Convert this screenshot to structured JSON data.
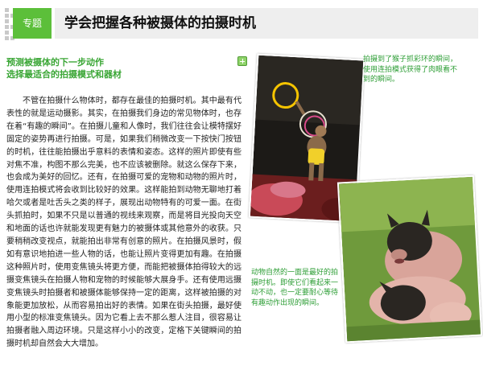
{
  "header": {
    "tag": "专题",
    "title": "学会把握各种被摄体的拍摄时机"
  },
  "section": {
    "subtitle_line1": "预测被摄体的下一步动作",
    "subtitle_line2": "选择最适合的拍摄模式和器材",
    "body": "不管在拍摄什么物体时，都存在最佳的拍摄时机。其中最有代表性的就是运动摄影。其实，在拍摄我们身边的常见物体时，也存在着“有趣的瞬间”。在拍摄儿童和人像时，我们往往会让模特摆好固定的姿势再进行拍摄。可是，如果我们稍微改变一下按快门按钮的时机，往往能拍摄出乎意料的表情和姿态。这样的照片即使有些对焦不准，构图不那么完美，也不应该被删除。就这么保存下来，也会成为美好的回忆。还有，在拍摄可爱的宠物和动物的照片时，使用连拍模式将会收到比较好的效果。这样能拍到动物无聊地打着哈欠或者是吐舌头之类的样子，展现出动物特有的可爱一面。在街头抓拍时，如果不只是以普通的视线来观察，而是将目光投向天空和地面的话也许就能发现更有魅力的被摄体或其他意外的收获。只要稍稍改变视点，就能拍出非常有创意的照片。在拍摄风景时，假如有意识地拍进一些人物的话，也能让照片变得更加有趣。在拍摄这种照片时，使用变焦镜头将更方便，而能把被摄体拍得较大的远摄变焦镜头在拍摄人物和宠物的时候能够大展身手。还有使用远摄变焦镜头时拍摄者和被摄体能够保持一定的距离，这样被拍摄的对象能更加放松，从而容易拍出好的表情。如果在街头拍摄，最好使用小型的标准变焦镜头。因为它看上去不那么惹人注目，很容易让拍摄者融入周边环境。只是这样小小的改变，定格下关键瞬间的拍摄时机却自然会大大增加。"
  },
  "captions": {
    "monkey": "拍摄到了猴子抓彩环的瞬间，使用连拍模式获得了肉眼看不到的瞬间。",
    "pigs": "动物自然的一面是最好的拍摄时机。即使它们看起来一动不动，也一定要耐心等待有趣动作出现的瞬间。"
  },
  "icons": {
    "expand": "plus-circle-icon"
  },
  "colors": {
    "accent_green": "#5cbf3a",
    "caption_green": "#2e9e36",
    "title_bar_bg": "#eeeeee"
  }
}
